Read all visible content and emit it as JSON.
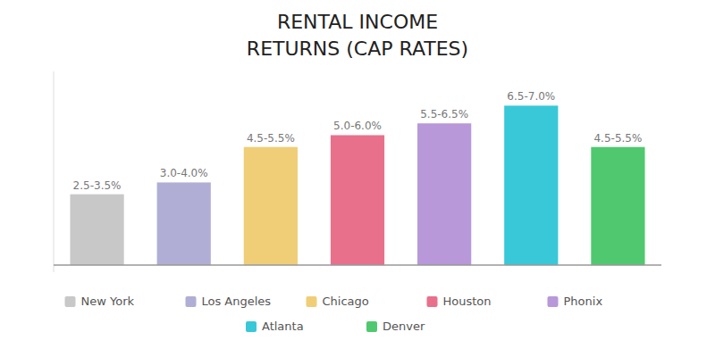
{
  "chart_data": {
    "type": "bar",
    "title": "RENTAL INCOME",
    "subtitle": "RETURNS (CAP RATES)",
    "categories": [
      "New York",
      "Los Angeles",
      "Chicago",
      "Houston",
      "Phonix",
      "Atlanta",
      "Denver"
    ],
    "values": [
      3.0,
      3.5,
      5.0,
      5.5,
      6.0,
      6.75,
      5.0
    ],
    "value_labels": [
      "2.5-3.5%",
      "3.0-4.0%",
      "4.5-5.5%",
      "5.0-6.0%",
      "5.5-6.5%",
      "6.5-7.0%",
      "4.5-5.5%"
    ],
    "colors": [
      "#c8c8c8",
      "#b0aed4",
      "#f0ce78",
      "#e8708a",
      "#b898d8",
      "#38c8d8",
      "#50c870"
    ],
    "ylim": [
      -0.3,
      8.2
    ],
    "tick_labels": false,
    "grid": false,
    "data_labels": true,
    "legend": "bottom"
  }
}
